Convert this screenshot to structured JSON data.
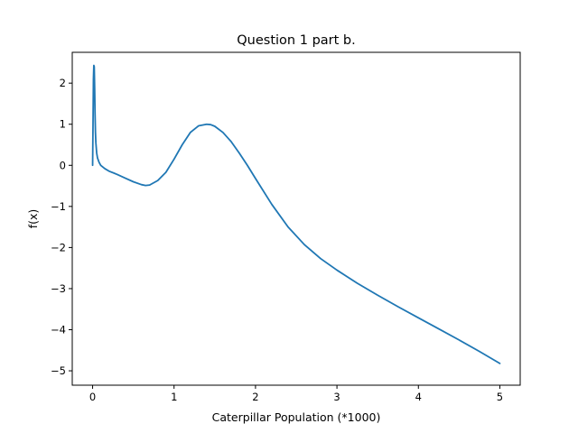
{
  "chart_data": {
    "type": "line",
    "title": "Question 1 part b.",
    "xlabel": "Caterpillar Population (*1000)",
    "ylabel": "f(x)",
    "xlim": [
      -0.25,
      5.25
    ],
    "ylim": [
      -5.35,
      2.75
    ],
    "xticks": [
      0,
      1,
      2,
      3,
      4,
      5
    ],
    "xtick_labels": [
      "0",
      "1",
      "2",
      "3",
      "4",
      "5"
    ],
    "yticks": [
      -5,
      -4,
      -3,
      -2,
      -1,
      0,
      1,
      2
    ],
    "ytick_labels": [
      "−5",
      "−4",
      "−3",
      "−2",
      "−1",
      "0",
      "1",
      "2"
    ],
    "grid": false,
    "series": [
      {
        "color": "#1f77b4",
        "x": [
          0,
          0.005,
          0.01,
          0.015,
          0.02,
          0.025,
          0.03,
          0.035,
          0.04,
          0.05,
          0.06,
          0.08,
          0.1,
          0.15,
          0.2,
          0.3,
          0.4,
          0.5,
          0.6,
          0.65,
          0.7,
          0.8,
          0.9,
          1.0,
          1.1,
          1.2,
          1.3,
          1.4,
          1.45,
          1.5,
          1.6,
          1.7,
          1.8,
          1.9,
          2.0,
          2.2,
          2.4,
          2.6,
          2.8,
          3.0,
          3.25,
          3.5,
          3.75,
          4.0,
          4.25,
          4.5,
          4.75,
          5.0
        ],
        "y": [
          0.0,
          1.0,
          2.1,
          2.43,
          2.4,
          1.9,
          1.25,
          0.8,
          0.55,
          0.3,
          0.18,
          0.07,
          0.0,
          -0.08,
          -0.14,
          -0.22,
          -0.31,
          -0.4,
          -0.47,
          -0.49,
          -0.48,
          -0.37,
          -0.17,
          0.15,
          0.5,
          0.8,
          0.96,
          1.0,
          0.99,
          0.95,
          0.8,
          0.58,
          0.3,
          0.0,
          -0.32,
          -0.95,
          -1.5,
          -1.93,
          -2.27,
          -2.55,
          -2.87,
          -3.16,
          -3.44,
          -3.71,
          -3.98,
          -4.25,
          -4.53,
          -4.82
        ]
      }
    ]
  }
}
